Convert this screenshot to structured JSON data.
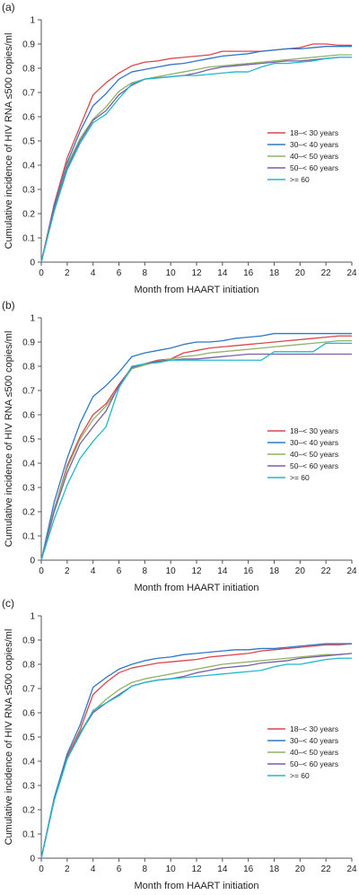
{
  "colors": {
    "18-30": "#d9474f",
    "30-40": "#2f78c4",
    "40-50": "#8fb266",
    "50-60": "#7a5ea8",
    "60plus": "#22b8c9"
  },
  "chart_data": [
    {
      "type": "line",
      "panel_label": "(a)",
      "xlabel": "Month from HAART initiation",
      "ylabel": "Cumulative incidence of HIV RNA ≤500 copies/ml",
      "xlim": [
        0,
        24
      ],
      "ylim": [
        0,
        1
      ],
      "x_ticks": [
        "0",
        "2",
        "4",
        "6",
        "8",
        "10",
        "12",
        "14",
        "16",
        "18",
        "20",
        "22",
        "24"
      ],
      "y_ticks": [
        "0",
        "0.1",
        "0.2",
        "0.3",
        "0.4",
        "0.5",
        "0.6",
        "0.7",
        "0.8",
        "0.9",
        "1"
      ],
      "legend_position": "right",
      "series": [
        {
          "name": "18–< 30 years",
          "color_key": "18-30",
          "x": [
            0,
            1,
            2,
            3,
            4,
            5,
            6,
            7,
            8,
            9,
            10,
            11,
            12,
            13,
            14,
            15,
            16,
            17,
            18,
            19,
            20,
            21,
            22,
            23,
            24
          ],
          "y": [
            0,
            0.24,
            0.43,
            0.56,
            0.69,
            0.74,
            0.78,
            0.81,
            0.825,
            0.83,
            0.84,
            0.845,
            0.85,
            0.855,
            0.87,
            0.87,
            0.87,
            0.87,
            0.875,
            0.88,
            0.885,
            0.9,
            0.9,
            0.895,
            0.895
          ]
        },
        {
          "name": "30–< 40 years",
          "color_key": "30-40",
          "x": [
            0,
            1,
            2,
            3,
            4,
            5,
            6,
            7,
            8,
            9,
            10,
            11,
            12,
            13,
            14,
            15,
            16,
            17,
            18,
            19,
            20,
            21,
            22,
            23,
            24
          ],
          "y": [
            0,
            0.23,
            0.41,
            0.54,
            0.645,
            0.695,
            0.755,
            0.785,
            0.795,
            0.805,
            0.815,
            0.82,
            0.83,
            0.84,
            0.85,
            0.855,
            0.86,
            0.87,
            0.875,
            0.88,
            0.88,
            0.885,
            0.89,
            0.89,
            0.89
          ]
        },
        {
          "name": "40–< 50 years",
          "color_key": "40-50",
          "x": [
            0,
            1,
            2,
            3,
            4,
            5,
            6,
            7,
            8,
            9,
            10,
            11,
            12,
            13,
            14,
            15,
            16,
            17,
            18,
            19,
            20,
            21,
            22,
            23,
            24
          ],
          "y": [
            0,
            0.22,
            0.4,
            0.51,
            0.59,
            0.64,
            0.705,
            0.74,
            0.755,
            0.765,
            0.775,
            0.785,
            0.795,
            0.805,
            0.81,
            0.815,
            0.82,
            0.825,
            0.83,
            0.835,
            0.84,
            0.845,
            0.85,
            0.855,
            0.855
          ]
        },
        {
          "name": "50–< 60 years",
          "color_key": "50-60",
          "x": [
            0,
            1,
            2,
            3,
            4,
            5,
            6,
            7,
            8,
            9,
            10,
            11,
            12,
            13,
            14,
            15,
            16,
            17,
            18,
            19,
            20,
            21,
            22,
            23,
            24
          ],
          "y": [
            0,
            0.22,
            0.39,
            0.5,
            0.585,
            0.625,
            0.69,
            0.73,
            0.755,
            0.76,
            0.765,
            0.77,
            0.78,
            0.795,
            0.805,
            0.81,
            0.815,
            0.82,
            0.825,
            0.83,
            0.83,
            0.835,
            0.84,
            0.845,
            0.845
          ]
        },
        {
          "name": ">= 60",
          "color_key": "60plus",
          "x": [
            0,
            1,
            2,
            3,
            4,
            5,
            6,
            7,
            8,
            9,
            10,
            11,
            12,
            13,
            14,
            15,
            16,
            17,
            18,
            19,
            20,
            21,
            22,
            23,
            24
          ],
          "y": [
            0,
            0.21,
            0.38,
            0.49,
            0.575,
            0.61,
            0.675,
            0.735,
            0.755,
            0.76,
            0.765,
            0.77,
            0.77,
            0.775,
            0.78,
            0.785,
            0.785,
            0.805,
            0.82,
            0.82,
            0.825,
            0.83,
            0.84,
            0.845,
            0.845
          ]
        }
      ]
    },
    {
      "type": "line",
      "panel_label": "(b)",
      "xlabel": "Month from HAART initiation",
      "ylabel": "Cumulative incidence of HIV RNA ≤500 copies/ml",
      "xlim": [
        0,
        24
      ],
      "ylim": [
        0,
        1
      ],
      "x_ticks": [
        "0",
        "2",
        "4",
        "6",
        "8",
        "10",
        "12",
        "14",
        "16",
        "18",
        "20",
        "22",
        "24"
      ],
      "y_ticks": [
        "0",
        "0.1",
        "0.2",
        "0.3",
        "0.4",
        "0.5",
        "0.6",
        "0.7",
        "0.8",
        "0.9",
        "1"
      ],
      "legend_position": "right",
      "series": [
        {
          "name": "18–< 30 years",
          "color_key": "18-30",
          "x": [
            0,
            1,
            2,
            3,
            4,
            5,
            6,
            7,
            8,
            9,
            10,
            11,
            12,
            13,
            14,
            15,
            16,
            17,
            18,
            19,
            20,
            21,
            22,
            23,
            24
          ],
          "y": [
            0,
            0.21,
            0.39,
            0.51,
            0.6,
            0.645,
            0.725,
            0.795,
            0.81,
            0.825,
            0.83,
            0.855,
            0.865,
            0.875,
            0.88,
            0.885,
            0.89,
            0.895,
            0.9,
            0.905,
            0.91,
            0.915,
            0.92,
            0.925,
            0.925
          ]
        },
        {
          "name": "30–< 40 years",
          "color_key": "30-40",
          "x": [
            0,
            1,
            2,
            3,
            4,
            5,
            6,
            7,
            8,
            9,
            10,
            11,
            12,
            13,
            14,
            15,
            16,
            17,
            18,
            19,
            20,
            21,
            22,
            23,
            24
          ],
          "y": [
            0,
            0.24,
            0.42,
            0.565,
            0.675,
            0.72,
            0.775,
            0.84,
            0.855,
            0.865,
            0.875,
            0.89,
            0.9,
            0.9,
            0.905,
            0.915,
            0.92,
            0.925,
            0.935,
            0.935,
            0.935,
            0.935,
            0.935,
            0.935,
            0.935
          ]
        },
        {
          "name": "40–< 50 years",
          "color_key": "40-50",
          "x": [
            0,
            1,
            2,
            3,
            4,
            5,
            6,
            7,
            8,
            9,
            10,
            11,
            12,
            13,
            14,
            15,
            16,
            17,
            18,
            19,
            20,
            21,
            22,
            23,
            24
          ],
          "y": [
            0,
            0.21,
            0.38,
            0.5,
            0.58,
            0.635,
            0.715,
            0.79,
            0.805,
            0.82,
            0.83,
            0.84,
            0.845,
            0.855,
            0.86,
            0.865,
            0.87,
            0.875,
            0.88,
            0.885,
            0.89,
            0.895,
            0.9,
            0.905,
            0.905
          ]
        },
        {
          "name": "50–< 60 years",
          "color_key": "50-60",
          "x": [
            0,
            1,
            2,
            3,
            4,
            5,
            6,
            7,
            8,
            9,
            10,
            11,
            12,
            13,
            14,
            15,
            16,
            17,
            18,
            19,
            20,
            21,
            22,
            23,
            24
          ],
          "y": [
            0,
            0.2,
            0.36,
            0.48,
            0.55,
            0.615,
            0.72,
            0.795,
            0.81,
            0.82,
            0.825,
            0.83,
            0.83,
            0.835,
            0.84,
            0.845,
            0.85,
            0.85,
            0.85,
            0.85,
            0.85,
            0.85,
            0.85,
            0.85,
            0.85
          ]
        },
        {
          "name": ">= 60",
          "color_key": "60plus",
          "x": [
            0,
            1,
            2,
            3,
            4,
            5,
            6,
            7,
            8,
            9,
            10,
            11,
            12,
            13,
            14,
            15,
            16,
            17,
            18,
            19,
            20,
            21,
            22,
            23,
            24
          ],
          "y": [
            0,
            0.17,
            0.31,
            0.42,
            0.49,
            0.55,
            0.71,
            0.8,
            0.81,
            0.815,
            0.825,
            0.825,
            0.825,
            0.825,
            0.825,
            0.825,
            0.825,
            0.825,
            0.86,
            0.86,
            0.86,
            0.86,
            0.895,
            0.895,
            0.895
          ]
        }
      ]
    },
    {
      "type": "line",
      "panel_label": "(c)",
      "xlabel": "Month from HAART initiation",
      "ylabel": "Cumulative incidence of HIV RNA ≤500 copies/ml",
      "xlim": [
        0,
        24
      ],
      "ylim": [
        0,
        1
      ],
      "x_ticks": [
        "0",
        "2",
        "4",
        "6",
        "8",
        "10",
        "12",
        "14",
        "16",
        "18",
        "20",
        "22",
        "24"
      ],
      "y_ticks": [
        "0",
        "0.1",
        "0.2",
        "0.3",
        "0.4",
        "0.5",
        "0.6",
        "0.7",
        "0.8",
        "0.9",
        "1"
      ],
      "legend_position": "right",
      "series": [
        {
          "name": "18–< 30 years",
          "color_key": "18-30",
          "x": [
            0,
            1,
            2,
            3,
            4,
            5,
            6,
            7,
            8,
            9,
            10,
            11,
            12,
            13,
            14,
            15,
            16,
            17,
            18,
            19,
            20,
            21,
            22,
            23,
            24
          ],
          "y": [
            0,
            0.245,
            0.42,
            0.53,
            0.675,
            0.725,
            0.765,
            0.785,
            0.795,
            0.805,
            0.81,
            0.815,
            0.82,
            0.83,
            0.835,
            0.84,
            0.845,
            0.855,
            0.86,
            0.865,
            0.87,
            0.875,
            0.88,
            0.88,
            0.885
          ]
        },
        {
          "name": "30–< 40 years",
          "color_key": "30-40",
          "x": [
            0,
            1,
            2,
            3,
            4,
            5,
            6,
            7,
            8,
            9,
            10,
            11,
            12,
            13,
            14,
            15,
            16,
            17,
            18,
            19,
            20,
            21,
            22,
            23,
            24
          ],
          "y": [
            0,
            0.25,
            0.43,
            0.55,
            0.705,
            0.745,
            0.78,
            0.8,
            0.815,
            0.825,
            0.83,
            0.84,
            0.845,
            0.85,
            0.855,
            0.86,
            0.86,
            0.865,
            0.865,
            0.87,
            0.875,
            0.88,
            0.885,
            0.885,
            0.885
          ]
        },
        {
          "name": "40–< 50 years",
          "color_key": "40-50",
          "x": [
            0,
            1,
            2,
            3,
            4,
            5,
            6,
            7,
            8,
            9,
            10,
            11,
            12,
            13,
            14,
            15,
            16,
            17,
            18,
            19,
            20,
            21,
            22,
            23,
            24
          ],
          "y": [
            0,
            0.24,
            0.41,
            0.52,
            0.605,
            0.655,
            0.695,
            0.725,
            0.74,
            0.75,
            0.76,
            0.77,
            0.78,
            0.79,
            0.8,
            0.805,
            0.81,
            0.815,
            0.82,
            0.825,
            0.83,
            0.835,
            0.84,
            0.84,
            0.845
          ]
        },
        {
          "name": "50–< 60 years",
          "color_key": "50-60",
          "x": [
            0,
            1,
            2,
            3,
            4,
            5,
            6,
            7,
            8,
            9,
            10,
            11,
            12,
            13,
            14,
            15,
            16,
            17,
            18,
            19,
            20,
            21,
            22,
            23,
            24
          ],
          "y": [
            0,
            0.24,
            0.41,
            0.515,
            0.6,
            0.64,
            0.675,
            0.71,
            0.725,
            0.735,
            0.74,
            0.75,
            0.765,
            0.775,
            0.785,
            0.79,
            0.795,
            0.805,
            0.81,
            0.815,
            0.825,
            0.83,
            0.835,
            0.84,
            0.845
          ]
        },
        {
          "name": ">= 60",
          "color_key": "60plus",
          "x": [
            0,
            1,
            2,
            3,
            4,
            5,
            6,
            7,
            8,
            9,
            10,
            11,
            12,
            13,
            14,
            15,
            16,
            17,
            18,
            19,
            20,
            21,
            22,
            23,
            24
          ],
          "y": [
            0,
            0.24,
            0.41,
            0.51,
            0.61,
            0.64,
            0.67,
            0.71,
            0.725,
            0.735,
            0.74,
            0.745,
            0.75,
            0.755,
            0.76,
            0.765,
            0.77,
            0.775,
            0.79,
            0.8,
            0.8,
            0.81,
            0.82,
            0.825,
            0.825
          ]
        }
      ]
    }
  ]
}
